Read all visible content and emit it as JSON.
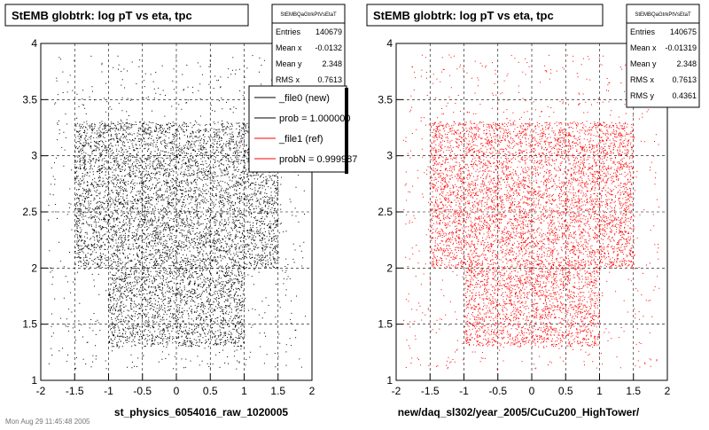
{
  "chart_data": [
    {
      "type": "scatter",
      "title": "StEMB globtrk: log pT vs eta, tpc",
      "xlabel": "st_physics_6054016_raw_1020005",
      "ylabel": "",
      "xlim": [
        -2,
        2
      ],
      "ylim": [
        1,
        4
      ],
      "xticks": [
        "-2",
        "-1.5",
        "-1",
        "-0.5",
        "0",
        "0.5",
        "1",
        "1.5",
        "2"
      ],
      "yticks": [
        "1",
        "1.5",
        "2",
        "2.5",
        "3",
        "3.5",
        "4"
      ],
      "grid": true,
      "marker_color": "#000000",
      "density_regions": [
        {
          "x": [
            -1.5,
            1.5
          ],
          "y": [
            2.0,
            3.3
          ],
          "density": "very high"
        },
        {
          "x": [
            -1.0,
            1.0
          ],
          "y": [
            1.3,
            2.0
          ],
          "density": "high"
        },
        {
          "x": [
            -1.9,
            1.9
          ],
          "y": [
            1.1,
            3.9
          ],
          "density": "low"
        }
      ],
      "stats_box": {
        "name": "StEMBQaGtrkPtVsEtaT",
        "rows": [
          {
            "label": "Entries",
            "value": "140679"
          },
          {
            "label": "Mean x",
            "value": "-0.0132"
          },
          {
            "label": "Mean y",
            "value": "2.348"
          },
          {
            "label": "RMS x",
            "value": "0.7613"
          }
        ]
      },
      "legend": {
        "position": "top-right",
        "entries": [
          {
            "label": "_file0 (new)",
            "color": "#000000"
          },
          {
            "label": "prob = 1.000000",
            "color": "#000000"
          },
          {
            "label": "_file1 (ref)",
            "color": "#ff0000"
          },
          {
            "label": "probN = 0.999987",
            "color": "#ff0000"
          }
        ]
      }
    },
    {
      "type": "scatter",
      "title": "StEMB globtrk: log pT vs eta, tpc",
      "xlabel": "new/daq_sl302/year_2005/CuCu200_HighTower/",
      "ylabel": "",
      "xlim": [
        -2,
        2
      ],
      "ylim": [
        1,
        4
      ],
      "xticks": [
        "-2",
        "-1.5",
        "-1",
        "-0.5",
        "0",
        "0.5",
        "1",
        "1.5",
        "2"
      ],
      "yticks": [
        "1",
        "1.5",
        "2",
        "2.5",
        "3",
        "3.5",
        "4"
      ],
      "grid": true,
      "marker_color": "#ff0000",
      "density_regions": [
        {
          "x": [
            -1.5,
            1.5
          ],
          "y": [
            2.0,
            3.3
          ],
          "density": "very high"
        },
        {
          "x": [
            -1.0,
            1.0
          ],
          "y": [
            1.3,
            2.0
          ],
          "density": "high"
        },
        {
          "x": [
            -1.9,
            1.9
          ],
          "y": [
            1.1,
            3.9
          ],
          "density": "low"
        }
      ],
      "stats_box": {
        "name": "StEMBQaGtrkPtVsEtaT",
        "rows": [
          {
            "label": "Entries",
            "value": "140675"
          },
          {
            "label": "Mean x",
            "value": "-0.01319"
          },
          {
            "label": "Mean y",
            "value": "2.348"
          },
          {
            "label": "RMS x",
            "value": "0.7613"
          },
          {
            "label": "RMS y",
            "value": "0.4361"
          }
        ]
      }
    }
  ],
  "footer_text": "Mon Aug 29 11:45:48 2005"
}
